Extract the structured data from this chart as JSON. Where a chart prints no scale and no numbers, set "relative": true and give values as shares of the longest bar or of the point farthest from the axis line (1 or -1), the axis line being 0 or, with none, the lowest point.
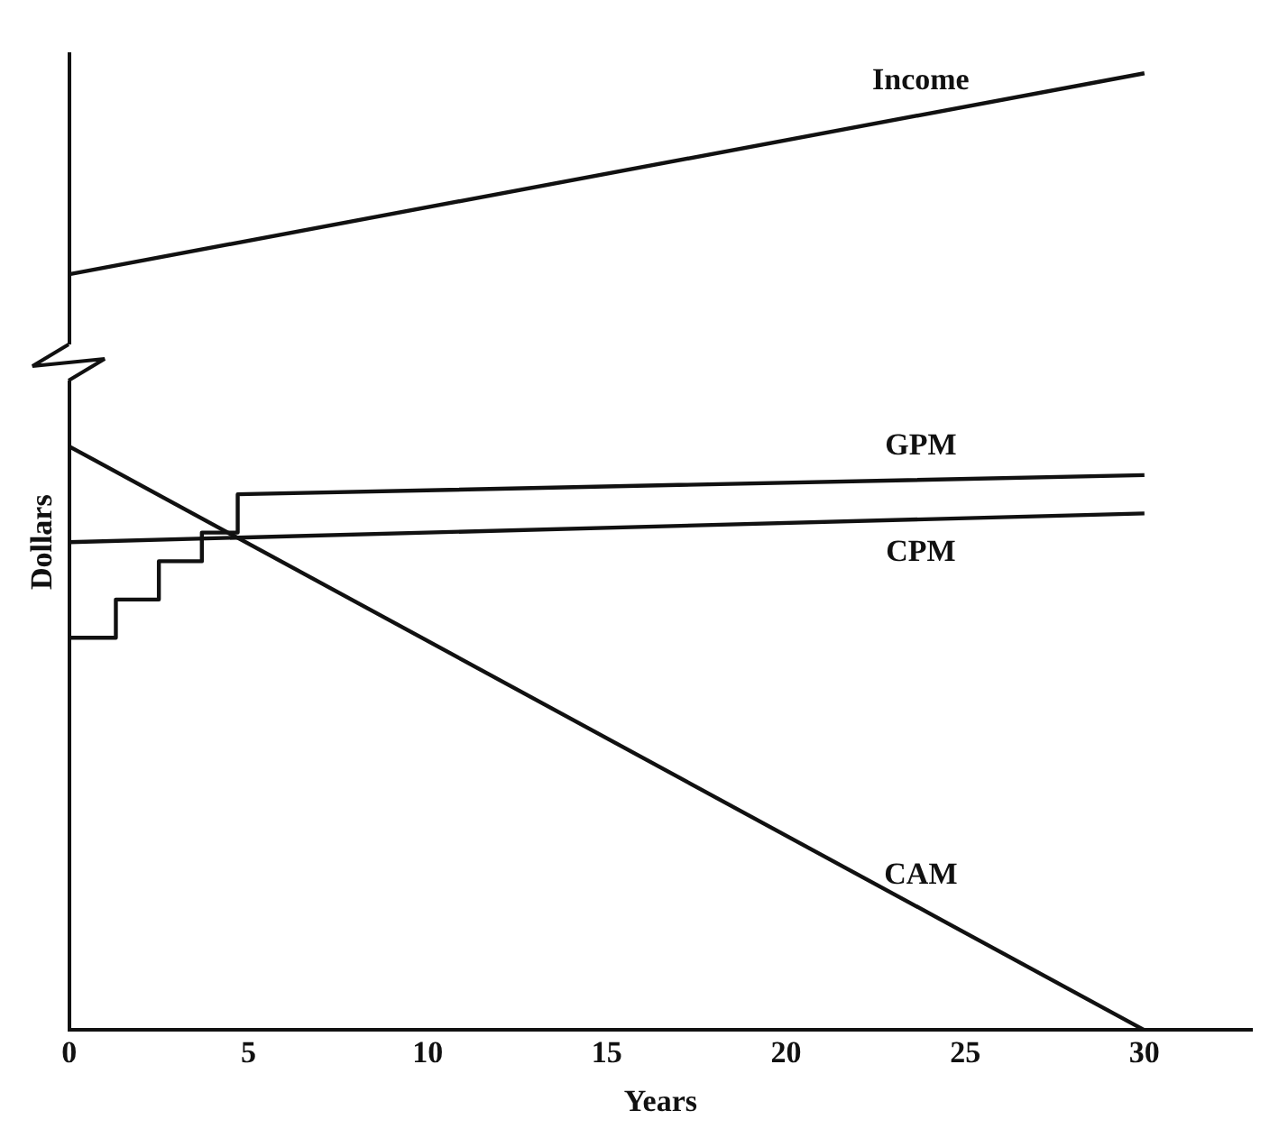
{
  "chart_data": {
    "type": "line",
    "xlabel": "Years",
    "ylabel": "Dollars",
    "relative": true,
    "xlim": [
      0,
      33
    ],
    "xticks": [
      0,
      5,
      10,
      15,
      20,
      25,
      30
    ],
    "grid": false,
    "legend": false,
    "marker": "none",
    "line_style": "solid",
    "series": [
      {
        "name": "Income",
        "color": "#111111",
        "x": [
          0,
          30
        ],
        "values": [
          0.79,
          1
        ]
      },
      {
        "name": "GPM",
        "color": "#111111",
        "x": [
          0,
          1.3,
          1.3,
          2.5,
          2.5,
          3.7,
          3.7,
          4.7,
          4.7,
          30
        ],
        "values": [
          0.41,
          0.41,
          0.45,
          0.45,
          0.49,
          0.49,
          0.52,
          0.52,
          0.56,
          0.58
        ]
      },
      {
        "name": "CPM",
        "color": "#111111",
        "x": [
          0,
          30
        ],
        "values": [
          0.51,
          0.54
        ]
      },
      {
        "name": "CAM",
        "color": "#111111",
        "x": [
          0,
          30
        ],
        "values": [
          0.61,
          0
        ]
      }
    ]
  }
}
